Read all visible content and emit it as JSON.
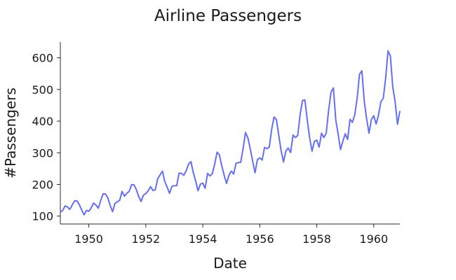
{
  "chart_data": {
    "type": "line",
    "title": "Airline Passengers",
    "xlabel": "Date",
    "ylabel": "#Passengers",
    "xlim": [
      "1949-01",
      "1960-12"
    ],
    "ylim": [
      75,
      650
    ],
    "x_ticks": [
      {
        "value": "1950-01",
        "label": "1950"
      },
      {
        "value": "1952-01",
        "label": "1952"
      },
      {
        "value": "1954-01",
        "label": "1954"
      },
      {
        "value": "1956-01",
        "label": "1956"
      },
      {
        "value": "1958-01",
        "label": "1958"
      },
      {
        "value": "1960-01",
        "label": "1960"
      }
    ],
    "y_ticks": [
      100,
      200,
      300,
      400,
      500,
      600
    ],
    "grid": false,
    "line_color": "#636efa",
    "series": [
      {
        "x": [
          "1949-01",
          "1949-02",
          "1949-03",
          "1949-04",
          "1949-05",
          "1949-06",
          "1949-07",
          "1949-08",
          "1949-09",
          "1949-10",
          "1949-11",
          "1949-12",
          "1950-01",
          "1950-02",
          "1950-03",
          "1950-04",
          "1950-05",
          "1950-06",
          "1950-07",
          "1950-08",
          "1950-09",
          "1950-10",
          "1950-11",
          "1950-12",
          "1951-01",
          "1951-02",
          "1951-03",
          "1951-04",
          "1951-05",
          "1951-06",
          "1951-07",
          "1951-08",
          "1951-09",
          "1951-10",
          "1951-11",
          "1951-12",
          "1952-01",
          "1952-02",
          "1952-03",
          "1952-04",
          "1952-05",
          "1952-06",
          "1952-07",
          "1952-08",
          "1952-09",
          "1952-10",
          "1952-11",
          "1952-12",
          "1953-01",
          "1953-02",
          "1953-03",
          "1953-04",
          "1953-05",
          "1953-06",
          "1953-07",
          "1953-08",
          "1953-09",
          "1953-10",
          "1953-11",
          "1953-12",
          "1954-01",
          "1954-02",
          "1954-03",
          "1954-04",
          "1954-05",
          "1954-06",
          "1954-07",
          "1954-08",
          "1954-09",
          "1954-10",
          "1954-11",
          "1954-12",
          "1955-01",
          "1955-02",
          "1955-03",
          "1955-04",
          "1955-05",
          "1955-06",
          "1955-07",
          "1955-08",
          "1955-09",
          "1955-10",
          "1955-11",
          "1955-12",
          "1956-01",
          "1956-02",
          "1956-03",
          "1956-04",
          "1956-05",
          "1956-06",
          "1956-07",
          "1956-08",
          "1956-09",
          "1956-10",
          "1956-11",
          "1956-12",
          "1957-01",
          "1957-02",
          "1957-03",
          "1957-04",
          "1957-05",
          "1957-06",
          "1957-07",
          "1957-08",
          "1957-09",
          "1957-10",
          "1957-11",
          "1957-12",
          "1958-01",
          "1958-02",
          "1958-03",
          "1958-04",
          "1958-05",
          "1958-06",
          "1958-07",
          "1958-08",
          "1958-09",
          "1958-10",
          "1958-11",
          "1958-12",
          "1959-01",
          "1959-02",
          "1959-03",
          "1959-04",
          "1959-05",
          "1959-06",
          "1959-07",
          "1959-08",
          "1959-09",
          "1959-10",
          "1959-11",
          "1959-12",
          "1960-01",
          "1960-02",
          "1960-03",
          "1960-04",
          "1960-05",
          "1960-06",
          "1960-07",
          "1960-08",
          "1960-09",
          "1960-10",
          "1960-11",
          "1960-12"
        ],
        "values": [
          112,
          118,
          132,
          129,
          121,
          135,
          148,
          148,
          136,
          119,
          104,
          118,
          115,
          126,
          141,
          135,
          125,
          149,
          170,
          170,
          158,
          133,
          114,
          140,
          145,
          150,
          178,
          163,
          172,
          178,
          199,
          199,
          184,
          162,
          146,
          166,
          171,
          180,
          193,
          181,
          183,
          218,
          230,
          242,
          209,
          191,
          172,
          194,
          196,
          196,
          236,
          235,
          229,
          243,
          264,
          272,
          237,
          211,
          180,
          201,
          204,
          188,
          235,
          227,
          234,
          264,
          302,
          293,
          259,
          229,
          203,
          229,
          242,
          233,
          267,
          269,
          270,
          315,
          364,
          347,
          312,
          274,
          237,
          278,
          284,
          277,
          317,
          313,
          318,
          374,
          413,
          405,
          355,
          306,
          271,
          306,
          315,
          301,
          356,
          348,
          355,
          422,
          465,
          467,
          404,
          347,
          305,
          336,
          340,
          318,
          362,
          348,
          363,
          435,
          491,
          505,
          404,
          359,
          310,
          337,
          360,
          342,
          406,
          396,
          420,
          472,
          548,
          559,
          463,
          407,
          362,
          405,
          417,
          391,
          419,
          461,
          472,
          535,
          622,
          606,
          508,
          461,
          390,
          432
        ]
      }
    ]
  }
}
